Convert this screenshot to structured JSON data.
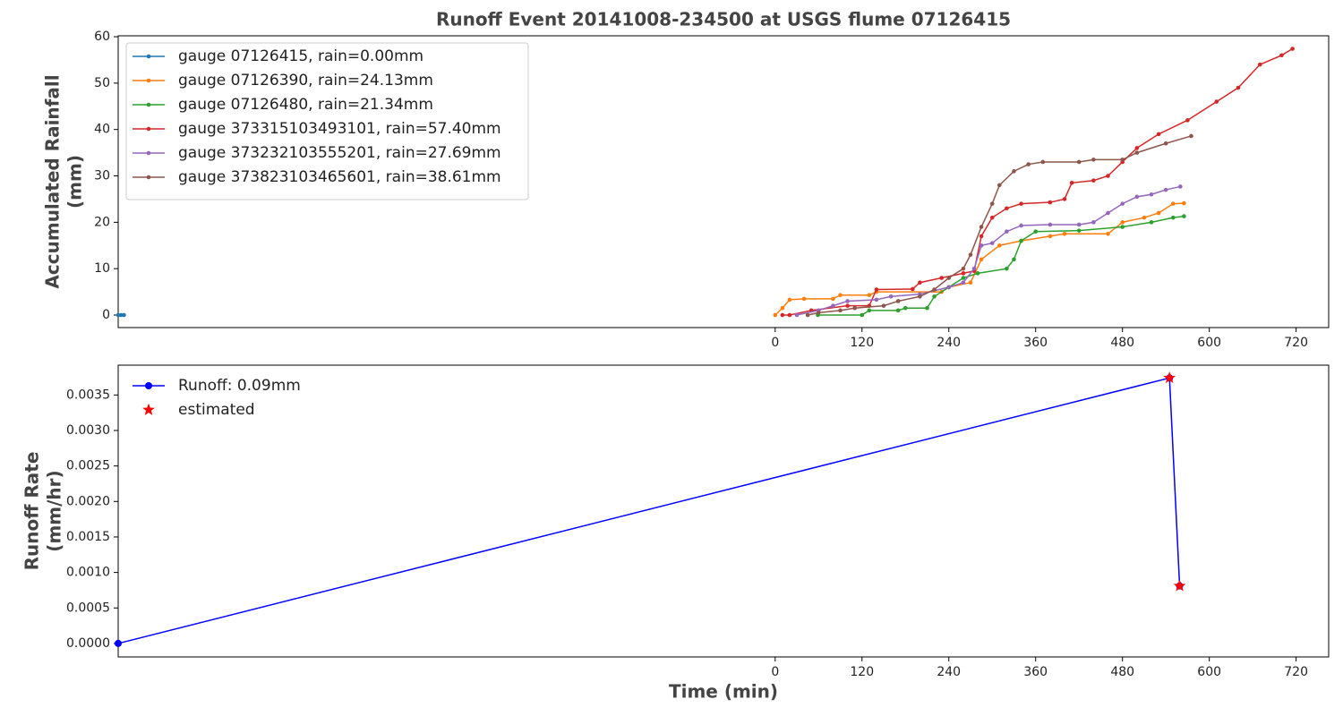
{
  "chart_data": [
    {
      "type": "line",
      "title": "Runoff Event 20141008-234500 at USGS flume 07126415",
      "ylabel": [
        "Accumulated Rainfall",
        "(mm)"
      ],
      "xlim": [
        -908,
        765
      ],
      "ylim": [
        -2.7,
        60.2
      ],
      "xticks": [
        0,
        120,
        240,
        360,
        480,
        600,
        720
      ],
      "yticks": [
        0,
        10,
        20,
        30,
        40,
        50,
        60
      ],
      "grid": false,
      "legend": "upper left",
      "legend_frame": true,
      "series": [
        {
          "name": "gauge 07126415, rain=0.00mm",
          "color": "#1f77b4",
          "marker": "dot",
          "x": [
            -908,
            -904,
            -900
          ],
          "values": [
            0,
            0,
            0
          ]
        },
        {
          "name": "gauge 07126390, rain=24.13mm",
          "color": "#ff7f0e",
          "marker": "dot",
          "x": [
            0,
            10,
            20,
            40,
            80,
            90,
            130,
            140,
            230,
            240,
            270,
            285,
            310,
            340,
            380,
            400,
            460,
            480,
            510,
            530,
            550,
            565
          ],
          "values": [
            0,
            1.5,
            3.3,
            3.5,
            3.5,
            4.3,
            4.3,
            5,
            5,
            6,
            7,
            12,
            15,
            16,
            17,
            17.5,
            17.5,
            20,
            21,
            22,
            24,
            24.1
          ]
        },
        {
          "name": "gauge 07126480, rain=21.34mm",
          "color": "#2ca02c",
          "marker": "dot",
          "x": [
            59,
            120,
            130,
            170,
            180,
            210,
            220,
            240,
            260,
            280,
            320,
            330,
            340,
            360,
            420,
            480,
            520,
            550,
            565
          ],
          "values": [
            0,
            0,
            1,
            1,
            1.5,
            1.5,
            4,
            6,
            8,
            9,
            10,
            12,
            16,
            18,
            18.2,
            19,
            20,
            21,
            21.3
          ]
        },
        {
          "name": "gauge 373315103493101, rain=57.40mm",
          "color": "#d62728",
          "marker": "dot",
          "x": [
            10,
            20,
            50,
            100,
            130,
            140,
            190,
            200,
            230,
            260,
            275,
            285,
            300,
            320,
            340,
            380,
            400,
            410,
            440,
            460,
            480,
            500,
            530,
            570,
            610,
            640,
            670,
            700,
            715
          ],
          "values": [
            0,
            0,
            1,
            2,
            2,
            5.5,
            5.6,
            7,
            8,
            9,
            9.5,
            17,
            21,
            23,
            24,
            24.3,
            25,
            28.5,
            29,
            30,
            33,
            36,
            39,
            42,
            46,
            49,
            54,
            56,
            57.4
          ]
        },
        {
          "name": "gauge 373232103555201, rain=27.69mm",
          "color": "#9467bd",
          "marker": "dot",
          "x": [
            30,
            60,
            80,
            100,
            140,
            160,
            200,
            240,
            260,
            275,
            285,
            300,
            320,
            340,
            380,
            420,
            440,
            460,
            480,
            500,
            520,
            540,
            560
          ],
          "values": [
            0,
            1,
            2,
            3,
            3.3,
            4,
            4.5,
            6,
            7,
            10,
            15,
            15.5,
            18,
            19.3,
            19.5,
            19.5,
            20,
            22,
            24,
            25.5,
            26,
            27,
            27.7
          ]
        },
        {
          "name": "gauge 373823103465601, rain=38.61mm",
          "color": "#8c564b",
          "marker": "dot",
          "x": [
            45,
            60,
            90,
            110,
            150,
            170,
            200,
            220,
            240,
            260,
            270,
            285,
            300,
            310,
            330,
            350,
            370,
            420,
            440,
            480,
            500,
            540,
            575
          ],
          "values": [
            0,
            0.5,
            1,
            1.5,
            2,
            3,
            4,
            5.5,
            8,
            10,
            13,
            19,
            24,
            28,
            31,
            32.5,
            33,
            33,
            33.5,
            33.5,
            35,
            37,
            38.6
          ]
        }
      ]
    },
    {
      "type": "line",
      "xlabel": "Time (min)",
      "ylabel": [
        "Runoff Rate",
        "(mm/hr)"
      ],
      "xlim": [
        -908,
        765
      ],
      "ylim": [
        -0.00019,
        0.00392
      ],
      "xticks": [
        0,
        120,
        240,
        360,
        480,
        600,
        720
      ],
      "yticks": [
        {
          "value": 0,
          "label": "0.0000"
        },
        {
          "value": 0.0005,
          "label": "0.0005"
        },
        {
          "value": 0.001,
          "label": "0.0010"
        },
        {
          "value": 0.0015,
          "label": "0.0015"
        },
        {
          "value": 0.002,
          "label": "0.0020"
        },
        {
          "value": 0.0025,
          "label": "0.0025"
        },
        {
          "value": 0.003,
          "label": "0.0030"
        },
        {
          "value": 0.0035,
          "label": "0.0035"
        }
      ],
      "grid": false,
      "legend": "upper left",
      "legend_frame": false,
      "series": [
        {
          "name": "Runoff: 0.09mm",
          "color": "#0000ff",
          "marker": "dot",
          "x": [
            -908,
            545,
            559
          ],
          "values": [
            0,
            0.00374,
            0.00081
          ]
        },
        {
          "name": "estimated",
          "color": "#ff0000",
          "marker": "star",
          "linestyle": "none",
          "x": [
            545,
            559
          ],
          "values": [
            0.00374,
            0.00081
          ]
        }
      ]
    }
  ]
}
